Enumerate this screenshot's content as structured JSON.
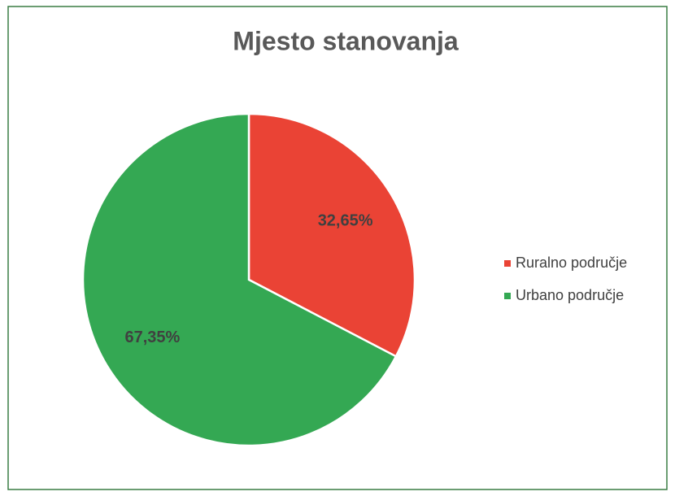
{
  "chart_data": {
    "type": "pie",
    "title": "Mjesto stanovanja",
    "categories": [
      "Ruralno područje",
      "Urbano područje"
    ],
    "values": [
      32.65,
      67.35
    ],
    "value_labels": [
      "32,65%",
      "67,35%"
    ],
    "colors": [
      "#ea4335",
      "#34a853"
    ],
    "legend": "right"
  }
}
